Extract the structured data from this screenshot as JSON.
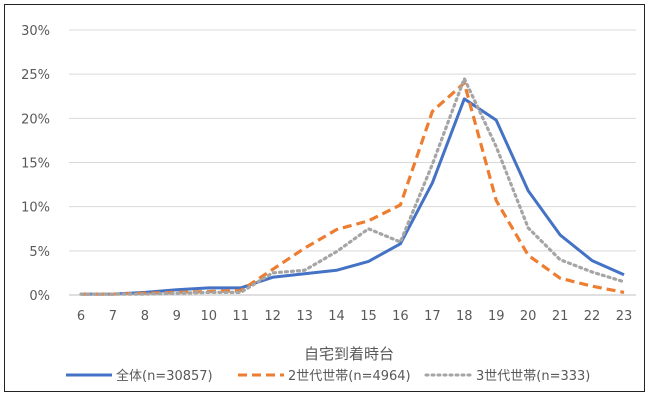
{
  "chart_data": {
    "type": "line",
    "xlabel": "自宅到着時台",
    "ylabel": "",
    "x": [
      "6",
      "7",
      "8",
      "9",
      "10",
      "11",
      "12",
      "13",
      "14",
      "15",
      "16",
      "17",
      "18",
      "19",
      "20",
      "21",
      "22",
      "23"
    ],
    "ylim": [
      0,
      30
    ],
    "yticks": [
      "0%",
      "5%",
      "10%",
      "15%",
      "20%",
      "25%",
      "30%"
    ],
    "grid": true,
    "legend_position": "bottom",
    "series": [
      {
        "name": "全体(n=30857)",
        "color": "#4472C4",
        "style": "solid",
        "values": [
          0.1,
          0.1,
          0.3,
          0.6,
          0.8,
          0.8,
          2.0,
          2.4,
          2.8,
          3.8,
          5.8,
          12.7,
          22.2,
          19.8,
          11.8,
          6.8,
          3.9,
          2.3
        ]
      },
      {
        "name": "2世代世帯(n=4964)",
        "color": "#ED7D31",
        "style": "dashed",
        "values": [
          0.1,
          0.1,
          0.2,
          0.3,
          0.4,
          0.5,
          2.9,
          5.3,
          7.4,
          8.4,
          10.2,
          20.8,
          24.0,
          10.7,
          4.5,
          1.9,
          1.0,
          0.3
        ]
      },
      {
        "name": "3世代世帯(n=333)",
        "color": "#A5A5A5",
        "style": "dotted",
        "values": [
          0.1,
          0.1,
          0.1,
          0.2,
          0.3,
          0.3,
          2.5,
          2.8,
          4.9,
          7.5,
          6.0,
          14.8,
          24.5,
          16.8,
          7.6,
          4.0,
          2.6,
          1.5
        ]
      }
    ]
  }
}
